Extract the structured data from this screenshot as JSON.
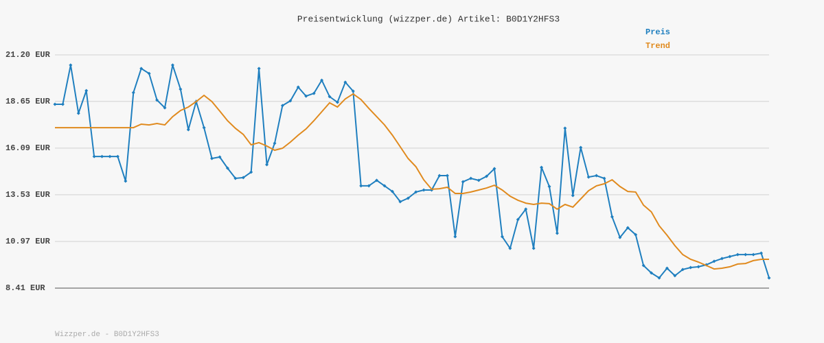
{
  "chart_data": {
    "type": "line",
    "title": "Preisentwicklung (wizzper.de) Artikel: B0D1Y2HFS3",
    "categories": [
      null,
      null,
      null,
      null,
      null,
      null,
      null,
      null,
      null,
      null,
      null,
      null,
      null,
      null,
      null,
      null,
      null,
      null,
      null,
      null,
      null,
      null,
      null,
      null,
      null,
      null,
      null,
      null,
      null,
      null,
      null,
      null,
      null,
      null,
      null,
      null,
      null,
      null,
      null,
      null,
      null,
      null,
      null,
      null,
      null,
      null,
      null,
      null,
      null,
      null,
      null,
      null,
      null,
      null,
      null,
      null,
      null,
      null,
      null,
      null,
      null,
      null,
      null,
      null,
      null,
      null,
      null,
      null,
      null,
      null,
      null,
      null,
      null,
      null,
      null,
      null,
      null,
      null,
      null,
      null,
      null,
      null,
      null,
      null,
      null,
      null,
      null,
      null,
      null,
      null,
      null,
      null
    ],
    "series": [
      {
        "name": "Preis",
        "color": "#1f7fbf",
        "markers": true,
        "values": [
          18.49,
          18.49,
          20.64,
          18.0,
          19.24,
          15.63,
          15.63,
          15.63,
          15.63,
          14.28,
          19.13,
          20.45,
          20.18,
          18.72,
          18.3,
          20.64,
          19.32,
          17.1,
          18.64,
          17.21,
          15.52,
          15.6,
          14.99,
          14.43,
          14.47,
          14.77,
          20.45,
          15.18,
          16.35,
          18.42,
          18.68,
          19.43,
          18.94,
          19.09,
          19.81,
          18.91,
          18.6,
          19.7,
          19.21,
          14.02,
          14.02,
          14.32,
          14.02,
          13.71,
          13.15,
          13.34,
          13.68,
          13.79,
          13.79,
          14.58,
          14.58,
          11.23,
          14.24,
          14.43,
          14.32,
          14.54,
          14.96,
          11.23,
          10.59,
          12.17,
          12.74,
          10.59,
          15.03,
          13.98,
          11.42,
          17.18,
          13.49,
          16.12,
          14.5,
          14.58,
          14.43,
          12.32,
          11.19,
          11.72,
          11.34,
          9.65,
          9.24,
          8.97,
          9.5,
          9.09,
          9.43,
          9.54,
          9.58,
          9.69,
          9.88,
          10.03,
          10.14,
          10.25,
          10.25,
          10.25,
          10.33,
          8.97
        ]
      },
      {
        "name": "Trend",
        "color": "#e08a1e",
        "markers": false,
        "values": [
          17.21,
          17.21,
          17.21,
          17.21,
          17.21,
          17.21,
          17.21,
          17.21,
          17.21,
          17.21,
          17.21,
          17.4,
          17.36,
          17.44,
          17.36,
          17.81,
          18.15,
          18.34,
          18.64,
          18.98,
          18.64,
          18.12,
          17.59,
          17.17,
          16.84,
          16.27,
          16.39,
          16.2,
          15.97,
          16.08,
          16.42,
          16.8,
          17.14,
          17.59,
          18.08,
          18.57,
          18.34,
          18.79,
          19.06,
          18.75,
          18.27,
          17.81,
          17.36,
          16.8,
          16.16,
          15.52,
          15.07,
          14.35,
          13.83,
          13.86,
          13.94,
          13.6,
          13.6,
          13.68,
          13.79,
          13.9,
          14.05,
          13.79,
          13.45,
          13.23,
          13.07,
          13.0,
          13.07,
          13.04,
          12.74,
          13.0,
          12.85,
          13.3,
          13.75,
          14.02,
          14.13,
          14.35,
          13.98,
          13.71,
          13.68,
          12.96,
          12.59,
          11.83,
          11.31,
          10.74,
          10.25,
          9.99,
          9.84,
          9.65,
          9.46,
          9.5,
          9.58,
          9.73,
          9.76,
          9.92,
          9.99,
          9.99
        ]
      }
    ],
    "ylim": [
      8.41,
      21.2
    ],
    "yticks": [
      {
        "value": 8.41,
        "label": "8.41 EUR"
      },
      {
        "value": 10.97,
        "label": "10.97 EUR"
      },
      {
        "value": 13.53,
        "label": "13.53 EUR"
      },
      {
        "value": 16.09,
        "label": "16.09 EUR"
      },
      {
        "value": 18.65,
        "label": "18.65 EUR"
      },
      {
        "value": 21.2,
        "label": "21.20 EUR"
      }
    ],
    "grid": true
  },
  "footer": "Wizzper.de - B0D1Y2HFS3"
}
